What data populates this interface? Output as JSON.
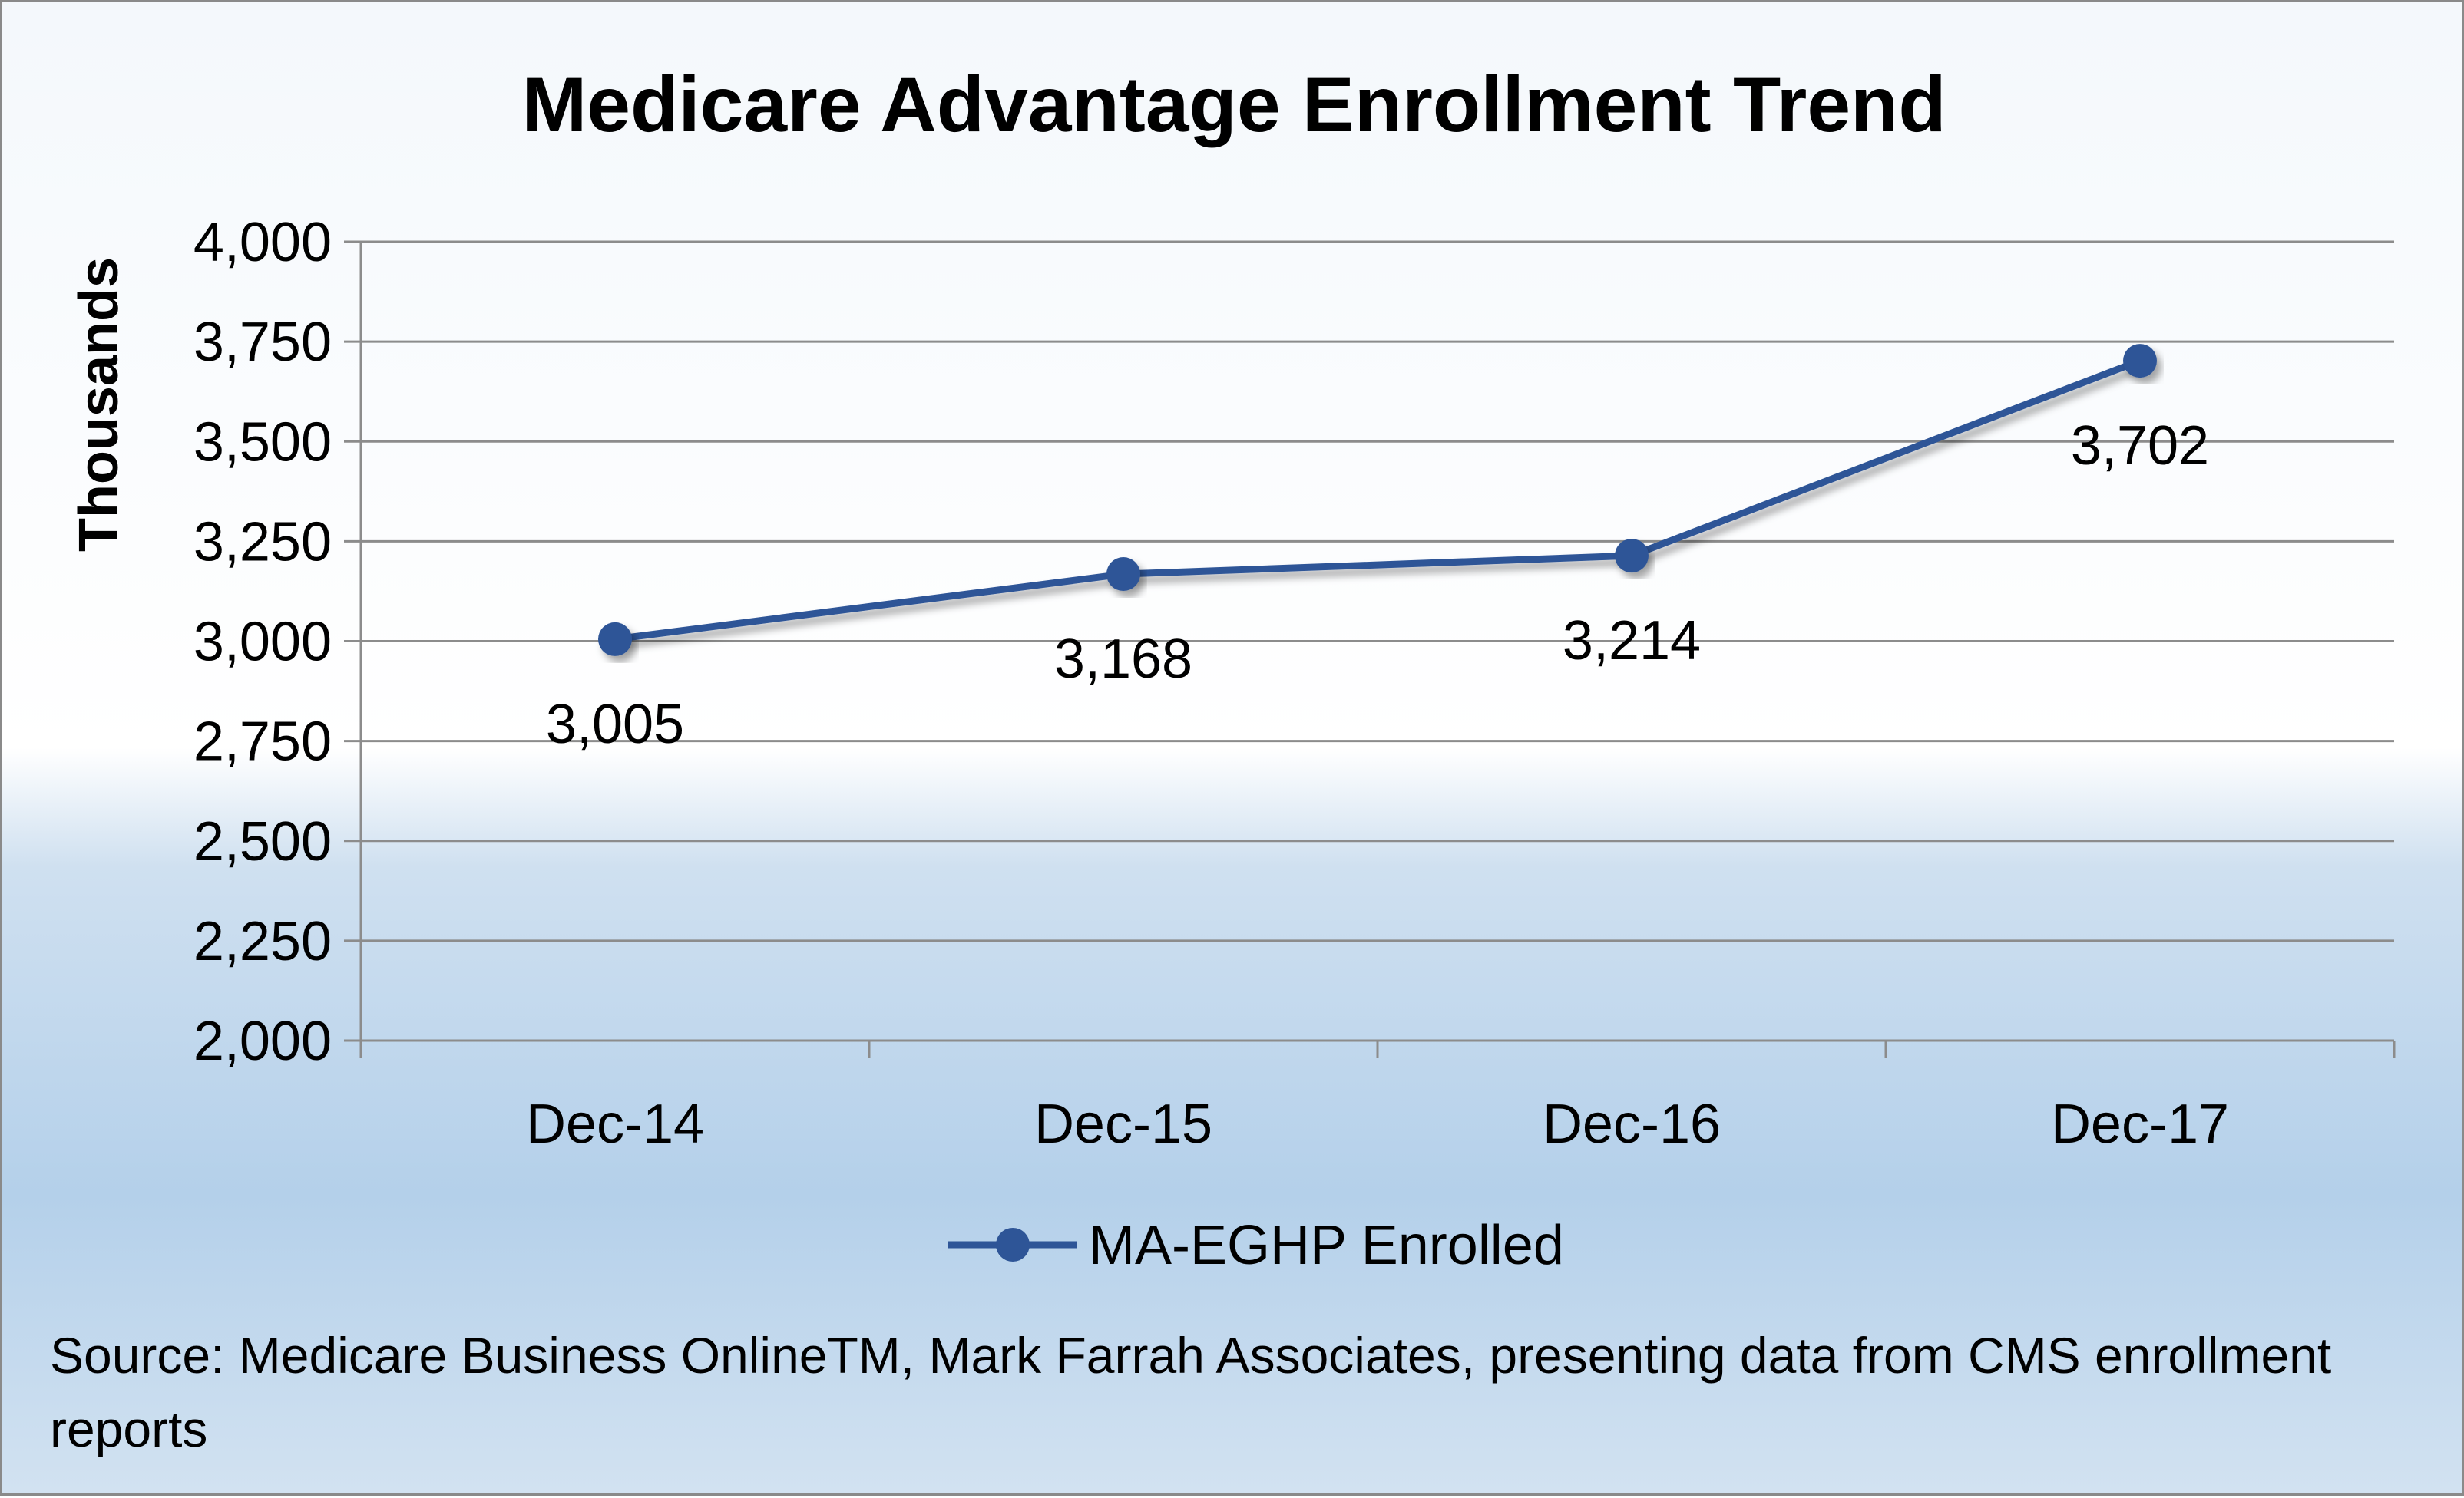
{
  "chart_data": {
    "type": "line",
    "title": "Medicare Advantage Enrollment Trend",
    "ylabel": "Thousands",
    "xlabel": "",
    "categories": [
      "Dec-14",
      "Dec-15",
      "Dec-16",
      "Dec-17"
    ],
    "ylim": [
      2000,
      4000
    ],
    "yticks": [
      2000,
      2250,
      2500,
      2750,
      3000,
      3250,
      3500,
      3750,
      4000
    ],
    "ytick_labels": [
      "2,000",
      "2,250",
      "2,500",
      "2,750",
      "3,000",
      "3,250",
      "3,500",
      "3,750",
      "4,000"
    ],
    "grid": true,
    "legend_position": "bottom",
    "series": [
      {
        "name": "MA-EGHP Enrolled",
        "values": [
          3005,
          3168,
          3214,
          3702
        ],
        "data_labels": [
          "3,005",
          "3,168",
          "3,214",
          "3,702"
        ],
        "color": "#2e5597"
      }
    ]
  },
  "source_note": "Source: Medicare Business OnlineTM, Mark Farrah Associates, presenting data from CMS enrollment reports"
}
